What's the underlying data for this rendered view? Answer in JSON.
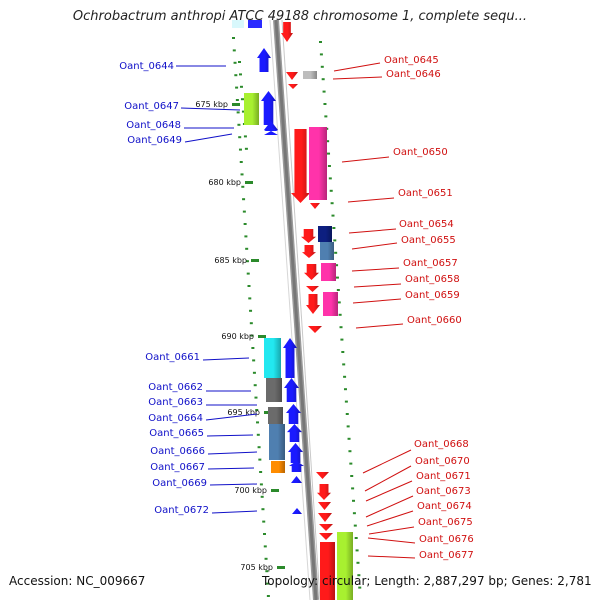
{
  "title": "Ochrobactrum anthropi ATCC 49188 chromosome 1, complete sequ...",
  "footer": {
    "accession": "Accession: NC_009667",
    "topology": "Topology: circular; Length: 2,887,297 bp; Genes: 2,781"
  },
  "colors": {
    "backbone": "#777777",
    "tick": "#2b8a2b",
    "forward_label": "#1010c8",
    "reverse_label": "#d01010",
    "red": "#ff1a1a",
    "magenta": "#ff33aa",
    "blue": "#1a1aff",
    "cyan": "#22e8f0",
    "lime": "#a8f030",
    "gray": "#6b6b6b",
    "lightgray": "#bdbdbd",
    "steel": "#4f7fb0",
    "navy": "#0d1f80",
    "orange": "#ff8c00"
  },
  "scale": {
    "unit": "kbp",
    "major_ticks": [
      {
        "label": "675 kbp"
      },
      {
        "label": "680 kbp"
      },
      {
        "label": "685 kbp"
      },
      {
        "label": "690 kbp"
      },
      {
        "label": "695 kbp"
      },
      {
        "label": "700 kbp"
      },
      {
        "label": "705 kbp"
      }
    ]
  },
  "genes": [
    {
      "name": "Oant_0644",
      "strand": "+",
      "color": "blue"
    },
    {
      "name": "Oant_0645",
      "strand": "-",
      "color": "red"
    },
    {
      "name": "Oant_0646",
      "strand": "-",
      "color": "lightgray"
    },
    {
      "name": "Oant_0647",
      "strand": "+",
      "color": "lime"
    },
    {
      "name": "Oant_0648",
      "strand": "+",
      "color": "blue"
    },
    {
      "name": "Oant_0649",
      "strand": "+",
      "color": "blue"
    },
    {
      "name": "Oant_0650",
      "strand": "-",
      "color": "red"
    },
    {
      "name": "Oant_0651",
      "strand": "-",
      "color": "magenta"
    },
    {
      "name": "Oant_0654",
      "strand": "-",
      "color": "navy"
    },
    {
      "name": "Oant_0655",
      "strand": "-",
      "color": "steel"
    },
    {
      "name": "Oant_0657",
      "strand": "-",
      "color": "magenta"
    },
    {
      "name": "Oant_0658",
      "strand": "-",
      "color": "red"
    },
    {
      "name": "Oant_0659",
      "strand": "-",
      "color": "magenta"
    },
    {
      "name": "Oant_0660",
      "strand": "-",
      "color": "red"
    },
    {
      "name": "Oant_0661",
      "strand": "+",
      "color": "cyan"
    },
    {
      "name": "Oant_0662",
      "strand": "+",
      "color": "gray"
    },
    {
      "name": "Oant_0663",
      "strand": "+",
      "color": "blue"
    },
    {
      "name": "Oant_0664",
      "strand": "+",
      "color": "gray"
    },
    {
      "name": "Oant_0665",
      "strand": "+",
      "color": "blue"
    },
    {
      "name": "Oant_0666",
      "strand": "+",
      "color": "steel"
    },
    {
      "name": "Oant_0667",
      "strand": "+",
      "color": "orange"
    },
    {
      "name": "Oant_0669",
      "strand": "+",
      "color": "blue"
    },
    {
      "name": "Oant_0668",
      "strand": "-",
      "color": "red"
    },
    {
      "name": "Oant_0670",
      "strand": "-",
      "color": "red"
    },
    {
      "name": "Oant_0671",
      "strand": "-",
      "color": "red"
    },
    {
      "name": "Oant_0672",
      "strand": "+",
      "color": "blue"
    },
    {
      "name": "Oant_0673",
      "strand": "-",
      "color": "red"
    },
    {
      "name": "Oant_0674",
      "strand": "-",
      "color": "red"
    },
    {
      "name": "Oant_0675",
      "strand": "-",
      "color": "red"
    },
    {
      "name": "Oant_0676",
      "strand": "-",
      "color": "red"
    },
    {
      "name": "Oant_0677",
      "strand": "-",
      "color": "lime"
    }
  ]
}
